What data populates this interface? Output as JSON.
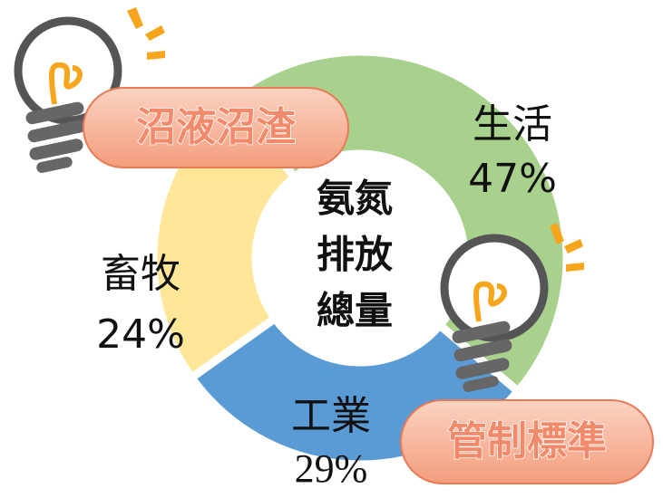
{
  "chart_data": {
    "type": "pie",
    "categories": [
      "生活",
      "工業",
      "畜牧"
    ],
    "values": [
      47,
      29,
      24
    ],
    "value_labels": [
      "47%",
      "29%",
      "24%"
    ],
    "colors": [
      "#a9d18e",
      "#5b9bd5",
      "#ffe699"
    ],
    "center_text": [
      "氨氮",
      "排放",
      "總量"
    ],
    "annotations": [
      "沼液沼渣",
      "管制標準"
    ]
  }
}
